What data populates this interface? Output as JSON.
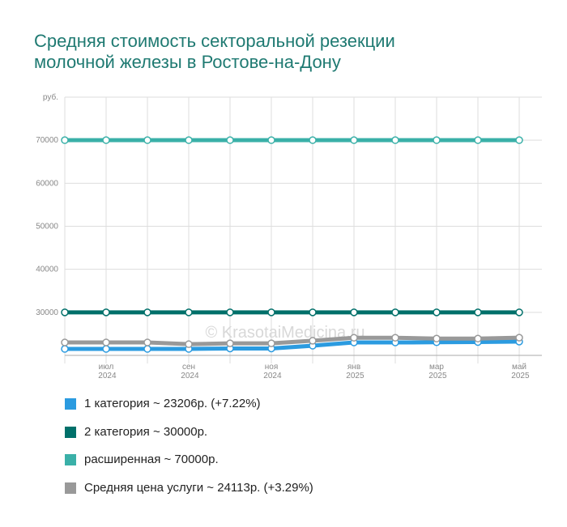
{
  "chart_data": {
    "type": "line",
    "title": "Средняя стоимость секторальной резекции молочной железы в Ростове-на-Дону",
    "watermark": "© KrasotaiMedicina.ru",
    "categories": [
      null,
      "июл 2024",
      null,
      "сен 2024",
      null,
      "ноя 2024",
      null,
      "янв 2025",
      null,
      "мар 2025",
      null,
      "май 2025"
    ],
    "ylim": [
      20000,
      80000
    ],
    "yticks": [
      30000,
      40000,
      50000,
      60000,
      70000,
      {
        "value": 80000,
        "label": "руб."
      }
    ],
    "grid": true,
    "series": [
      {
        "name": "1 категория ~ 23206р. (+7.22%)",
        "color": "#2b9be0",
        "values": [
          21500,
          21500,
          21500,
          21500,
          21600,
          21600,
          22250,
          23000,
          23000,
          23050,
          23100,
          23206
        ]
      },
      {
        "name": "2 категория ~ 30000р.",
        "color": "#00706a",
        "values": [
          30000,
          30000,
          30000,
          30000,
          30000,
          30000,
          30000,
          30000,
          30000,
          30000,
          30000,
          30000
        ]
      },
      {
        "name": "расширенная ~ 70000р.",
        "color": "#3ab0a8",
        "values": [
          70000,
          70000,
          70000,
          70000,
          70000,
          70000,
          70000,
          70000,
          70000,
          70000,
          70000,
          70000
        ]
      },
      {
        "name": "Средняя цена услуги ~ 24113р. (+3.29%)",
        "color": "#999999",
        "values": [
          23000,
          23000,
          23000,
          22600,
          22800,
          22800,
          23400,
          24100,
          24100,
          23900,
          23900,
          24113
        ]
      }
    ]
  }
}
